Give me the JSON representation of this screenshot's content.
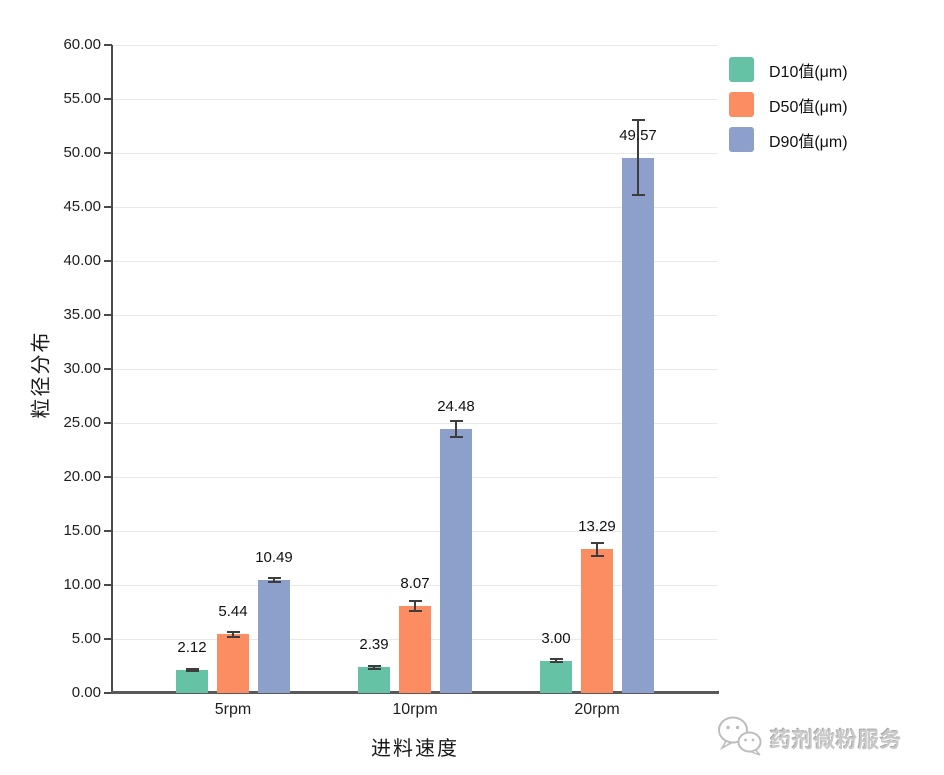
{
  "chart_data": {
    "type": "bar",
    "title": "",
    "categories": [
      "5rpm",
      "10rpm",
      "20rpm"
    ],
    "series": [
      {
        "id": "d10",
        "name": "D10值(μm)",
        "color": "#66C2A5",
        "values": [
          2.12,
          2.39,
          3.0
        ],
        "errors": [
          0.12,
          0.15,
          0.15
        ]
      },
      {
        "id": "d50",
        "name": "D50值(μm)",
        "color": "#FC8D62",
        "values": [
          5.44,
          8.07,
          13.29
        ],
        "errors": [
          0.25,
          0.45,
          0.6
        ]
      },
      {
        "id": "d90",
        "name": "D90值(μm)",
        "color": "#8DA0CB",
        "values": [
          10.49,
          24.48,
          49.57
        ],
        "errors": [
          0.2,
          0.75,
          3.5
        ]
      }
    ],
    "xlabel": "进料速度",
    "ylabel": "粒径分布",
    "ylim": [
      0,
      60
    ],
    "ytick_step": 5,
    "ytick_decimals": 2,
    "value_label_decimals": 2,
    "grid": true,
    "error_bars": true,
    "legend_position": "top-right"
  },
  "legend": {
    "items": [
      {
        "label": "D10值(μm)",
        "color": "#66C2A5"
      },
      {
        "label": "D50值(μm)",
        "color": "#FC8D62"
      },
      {
        "label": "D90值(μm)",
        "color": "#8DA0CB"
      }
    ]
  },
  "watermark": {
    "icon": "wechat-bubbles-icon",
    "text": "药剂微粉服务"
  },
  "colors": {
    "axis": "#4a4a4a",
    "baseline": "#595959",
    "gridline": "#e9e9e9",
    "error_bar": "#3d3d3d"
  }
}
